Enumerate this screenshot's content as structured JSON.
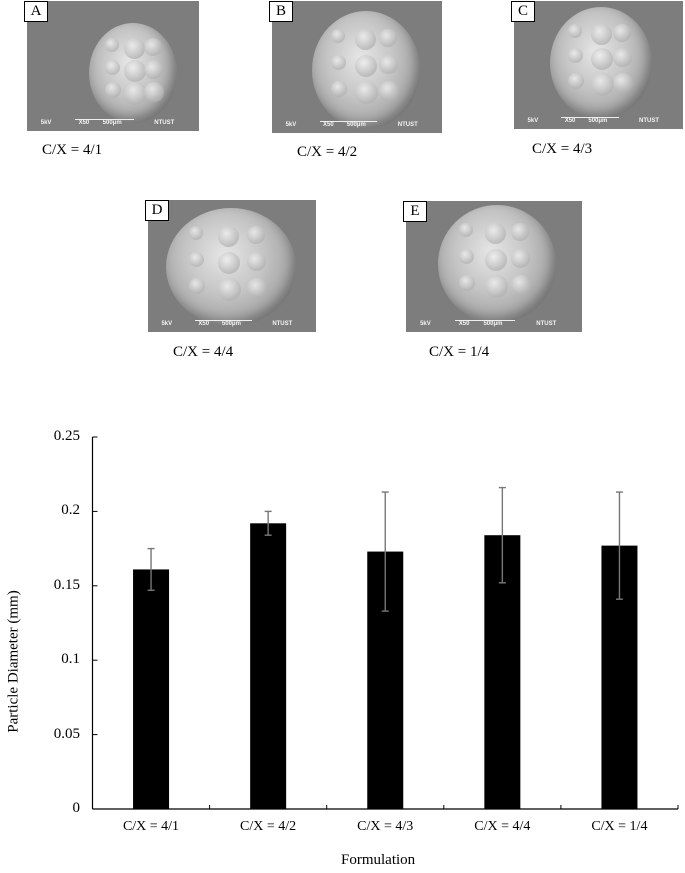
{
  "panels": [
    {
      "tag": "A",
      "caption": "C/X = 4/1",
      "info": {
        "kv": "5kV",
        "mag": "X50",
        "scale": "500μm",
        "lab": "NTUST"
      }
    },
    {
      "tag": "B",
      "caption": "C/X = 4/2",
      "info": {
        "kv": "5kV",
        "mag": "X50",
        "scale": "500μm",
        "lab": "NTUST"
      }
    },
    {
      "tag": "C",
      "caption": "C/X = 4/3",
      "info": {
        "kv": "5kV",
        "mag": "X50",
        "scale": "500μm",
        "lab": "NTUST"
      }
    },
    {
      "tag": "D",
      "caption": "C/X = 4/4",
      "info": {
        "kv": "5kV",
        "mag": "X50",
        "scale": "500μm",
        "lab": "NTUST"
      }
    },
    {
      "tag": "E",
      "caption": "C/X = 1/4",
      "info": {
        "kv": "5kV",
        "mag": "X50",
        "scale": "500μm",
        "lab": "NTUST"
      }
    }
  ],
  "chart_data": {
    "type": "bar",
    "title": "",
    "xlabel": "Formulation",
    "ylabel": "Particle Diameter (mm)",
    "categories": [
      "C/X = 4/1",
      "C/X = 4/2",
      "C/X = 4/3",
      "C/X = 4/4",
      "C/X = 1/4"
    ],
    "values": [
      0.161,
      0.192,
      0.173,
      0.184,
      0.177
    ],
    "error": [
      0.014,
      0.008,
      0.04,
      0.032,
      0.036
    ],
    "ylim": [
      0,
      0.25
    ],
    "yticks": [
      "0",
      "0.05",
      "0.1",
      "0.15",
      "0.2",
      "0.25"
    ],
    "grid": false,
    "legend": null,
    "bar_color": "#000000",
    "error_color": "#777777"
  }
}
